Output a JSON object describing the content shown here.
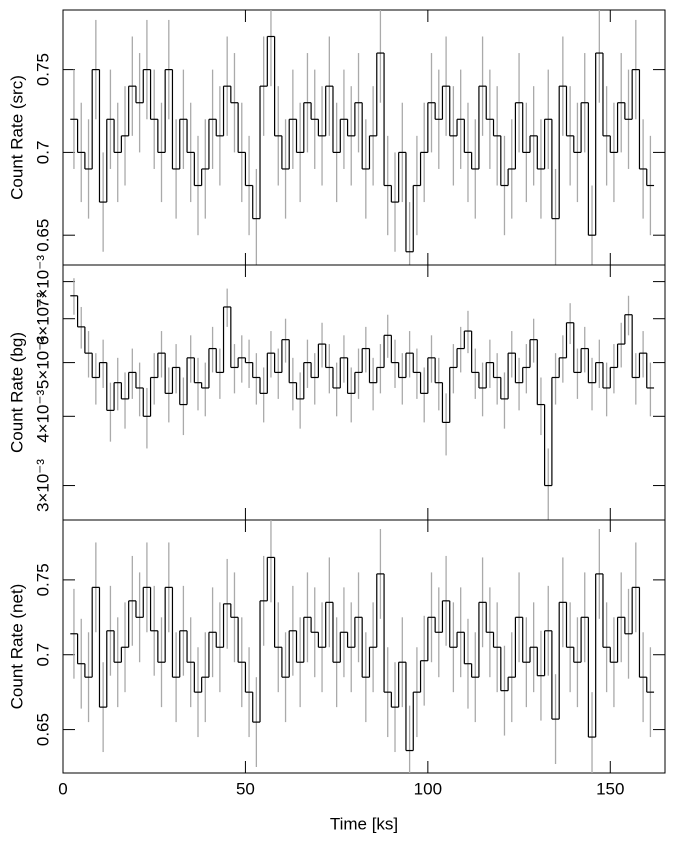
{
  "chart_data": [
    {
      "type": "step",
      "ylabel": "Count Rate (src)",
      "color": "#000000",
      "error_color": "#aaaaaa",
      "x": [
        3,
        5,
        7,
        9,
        11,
        13,
        15,
        17,
        19,
        21,
        23,
        25,
        27,
        29,
        31,
        33,
        35,
        37,
        39,
        41,
        43,
        45,
        47,
        49,
        51,
        53,
        55,
        57,
        59,
        61,
        63,
        65,
        67,
        69,
        71,
        73,
        75,
        77,
        79,
        81,
        83,
        85,
        87,
        89,
        91,
        93,
        95,
        97,
        99,
        101,
        103,
        105,
        107,
        109,
        111,
        113,
        115,
        117,
        119,
        121,
        123,
        125,
        127,
        129,
        131,
        133,
        135,
        137,
        139,
        141,
        143,
        145,
        147,
        149,
        151,
        153,
        155,
        157,
        159,
        161
      ],
      "values": [
        0.72,
        0.7,
        0.69,
        0.75,
        0.67,
        0.72,
        0.7,
        0.71,
        0.74,
        0.73,
        0.75,
        0.72,
        0.7,
        0.75,
        0.69,
        0.72,
        0.7,
        0.68,
        0.69,
        0.72,
        0.71,
        0.74,
        0.73,
        0.7,
        0.68,
        0.66,
        0.74,
        0.77,
        0.71,
        0.69,
        0.72,
        0.7,
        0.73,
        0.72,
        0.71,
        0.74,
        0.7,
        0.72,
        0.71,
        0.73,
        0.69,
        0.71,
        0.76,
        0.68,
        0.67,
        0.7,
        0.64,
        0.68,
        0.7,
        0.73,
        0.72,
        0.74,
        0.71,
        0.72,
        0.7,
        0.69,
        0.74,
        0.72,
        0.71,
        0.68,
        0.69,
        0.73,
        0.7,
        0.71,
        0.69,
        0.72,
        0.66,
        0.74,
        0.71,
        0.7,
        0.73,
        0.65,
        0.76,
        0.71,
        0.7,
        0.73,
        0.72,
        0.75,
        0.69,
        0.68
      ],
      "error": 0.03,
      "xlim": [
        0,
        165
      ],
      "xticks": [
        0,
        50,
        100,
        150
      ],
      "ylim": [
        0.632,
        0.786
      ],
      "yticks": [
        0.65,
        0.7,
        0.75
      ]
    },
    {
      "type": "step",
      "ylabel": "Count Rate (bg)",
      "color": "#000000",
      "error_color": "#aaaaaa",
      "log_y": true,
      "x": [
        3,
        5,
        7,
        9,
        11,
        13,
        15,
        17,
        19,
        21,
        23,
        25,
        27,
        29,
        31,
        33,
        35,
        37,
        39,
        41,
        43,
        45,
        47,
        49,
        51,
        53,
        55,
        57,
        59,
        61,
        63,
        65,
        67,
        69,
        71,
        73,
        75,
        77,
        79,
        81,
        83,
        85,
        87,
        89,
        91,
        93,
        95,
        97,
        99,
        101,
        103,
        105,
        107,
        109,
        111,
        113,
        115,
        117,
        119,
        121,
        123,
        125,
        127,
        129,
        131,
        133,
        135,
        137,
        139,
        141,
        143,
        145,
        147,
        149,
        151,
        153,
        155,
        157,
        159,
        161
      ],
      "values": [
        0.0066,
        0.0058,
        0.0052,
        0.0047,
        0.005,
        0.0041,
        0.0046,
        0.0043,
        0.0048,
        0.0045,
        0.004,
        0.0047,
        0.0052,
        0.0044,
        0.0049,
        0.0042,
        0.0051,
        0.0046,
        0.0045,
        0.0053,
        0.0048,
        0.0063,
        0.0049,
        0.0051,
        0.005,
        0.0047,
        0.0044,
        0.0052,
        0.0048,
        0.0055,
        0.0046,
        0.0043,
        0.005,
        0.0047,
        0.0054,
        0.0049,
        0.0045,
        0.0051,
        0.0044,
        0.0048,
        0.0053,
        0.0046,
        0.0049,
        0.0056,
        0.005,
        0.0047,
        0.0052,
        0.0048,
        0.0044,
        0.0051,
        0.0046,
        0.0039,
        0.0049,
        0.0053,
        0.0057,
        0.0048,
        0.0045,
        0.005,
        0.0047,
        0.0043,
        0.0052,
        0.0046,
        0.0049,
        0.0055,
        0.0042,
        0.003,
        0.0047,
        0.0051,
        0.0059,
        0.0048,
        0.0053,
        0.0046,
        0.005,
        0.0045,
        0.0049,
        0.0054,
        0.0061,
        0.0047,
        0.0052,
        0.0045
      ],
      "error": 0.0005,
      "xlim": [
        0,
        165
      ],
      "xticks": [
        0,
        50,
        100,
        150
      ],
      "ylim": [
        0.0026,
        0.0075
      ],
      "yticks": [
        {
          "value": 0.003,
          "label": "3×10⁻³"
        },
        {
          "value": 0.004,
          "label": "4×10⁻³"
        },
        {
          "value": 0.005,
          "label": "5×10⁻³"
        },
        {
          "value": 0.006,
          "label": "6×10⁻³"
        },
        {
          "value": 0.007,
          "label": "7×10⁻³"
        }
      ]
    },
    {
      "type": "step",
      "ylabel": "Count Rate (net)",
      "xlabel": "Time [ks]",
      "color": "#000000",
      "error_color": "#aaaaaa",
      "x": [
        3,
        5,
        7,
        9,
        11,
        13,
        15,
        17,
        19,
        21,
        23,
        25,
        27,
        29,
        31,
        33,
        35,
        37,
        39,
        41,
        43,
        45,
        47,
        49,
        51,
        53,
        55,
        57,
        59,
        61,
        63,
        65,
        67,
        69,
        71,
        73,
        75,
        77,
        79,
        81,
        83,
        85,
        87,
        89,
        91,
        93,
        95,
        97,
        99,
        101,
        103,
        105,
        107,
        109,
        111,
        113,
        115,
        117,
        119,
        121,
        123,
        125,
        127,
        129,
        131,
        133,
        135,
        137,
        139,
        141,
        143,
        145,
        147,
        149,
        151,
        153,
        155,
        157,
        159,
        161
      ],
      "values": [
        0.714,
        0.694,
        0.685,
        0.745,
        0.665,
        0.716,
        0.695,
        0.705,
        0.736,
        0.725,
        0.745,
        0.716,
        0.695,
        0.745,
        0.685,
        0.716,
        0.695,
        0.675,
        0.685,
        0.715,
        0.705,
        0.734,
        0.725,
        0.695,
        0.675,
        0.655,
        0.736,
        0.765,
        0.705,
        0.685,
        0.716,
        0.695,
        0.725,
        0.715,
        0.705,
        0.735,
        0.695,
        0.715,
        0.705,
        0.725,
        0.685,
        0.705,
        0.754,
        0.675,
        0.665,
        0.695,
        0.636,
        0.675,
        0.696,
        0.725,
        0.715,
        0.736,
        0.705,
        0.715,
        0.694,
        0.685,
        0.735,
        0.715,
        0.705,
        0.676,
        0.685,
        0.725,
        0.695,
        0.705,
        0.686,
        0.716,
        0.657,
        0.735,
        0.705,
        0.695,
        0.725,
        0.645,
        0.754,
        0.705,
        0.695,
        0.725,
        0.714,
        0.745,
        0.685,
        0.675
      ],
      "error": 0.03,
      "xlim": [
        0,
        165
      ],
      "xticks": [
        0,
        50,
        100,
        150
      ],
      "ylim": [
        0.621,
        0.79
      ],
      "yticks": [
        0.65,
        0.7,
        0.75
      ]
    }
  ]
}
